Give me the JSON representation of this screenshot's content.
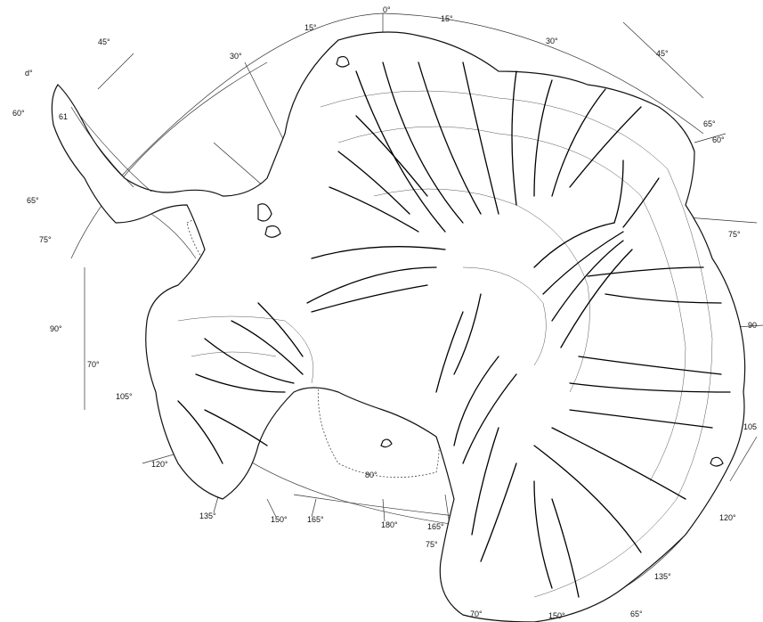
{
  "map": {
    "labels": {
      "lon_0": "0°",
      "lon_15e_top": "15°",
      "lon_15w_top": "15°",
      "lon_30_top": "30°",
      "lon_30_right": "30°",
      "lon_45_left": "45°",
      "lon_45_right": "45°",
      "lat_60_left": "60°",
      "lat_65_left": "65°",
      "lat_75_left": "75°",
      "lon_90_left": "90°",
      "lat_70_left": "70°",
      "lon_105_left": "105°",
      "lon_120_left": "120°",
      "lon_135_left": "135°",
      "lon_150_bottom": "150°",
      "lon_165_bottom": "165°",
      "lon_180": "180°",
      "lat_80": "80°",
      "lon_165_center": "165°",
      "lat_75_center": "75°",
      "lon_170_bottom": "70°",
      "lon_150_right_bottom": "150°",
      "lon_135_right": "135°",
      "lat_65_bottom": "65°",
      "lon_120_right": "120°",
      "lon_105_right": "105",
      "lon_90_right": "90",
      "lat_75_right": "75°",
      "lat_65_right": "65°",
      "lat_60_right": "60°",
      "corner_mark": "d°",
      "lat_61_left": "61"
    }
  }
}
